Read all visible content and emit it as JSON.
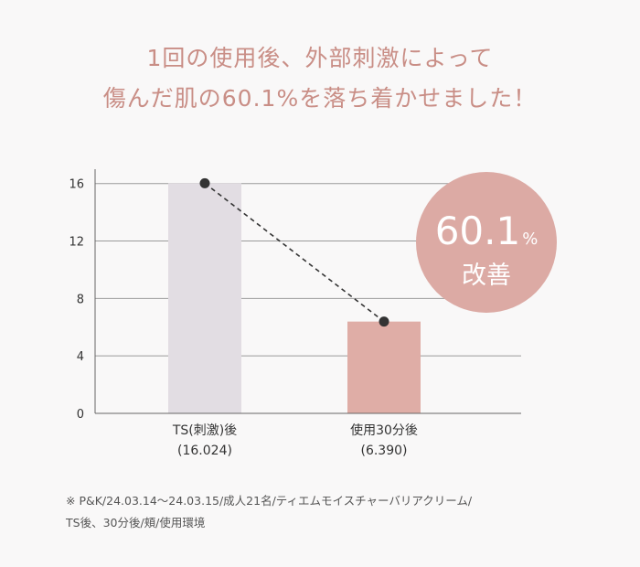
{
  "headline": {
    "line1": "1回の使用後、外部刺激によって",
    "line2": "傷んだ肌の60.1%を落ち着かせました！"
  },
  "colors": {
    "headline": "#c98e86",
    "bar_before": "#e2dde3",
    "bar_after": "#dfada6",
    "badge": "#dcaaa4",
    "line": "#333333"
  },
  "badge": {
    "number": "60.1",
    "percent": "%",
    "label": "改善"
  },
  "chart_data": {
    "type": "bar",
    "categories": [
      "TS(刺激)後",
      "使用30分後"
    ],
    "value_labels": [
      "(16.024)",
      "(6.390)"
    ],
    "values": [
      16.024,
      6.39
    ],
    "ylim": [
      0,
      17
    ],
    "yticks": [
      0,
      4,
      8,
      12,
      16
    ],
    "grid": true,
    "connector_line": "dashed"
  },
  "footnote": {
    "line1": "※ P&K/24.03.14〜24.03.15/成人21名/ティエムモイスチャーバリアクリーム/",
    "line2": "TS後、30分後/頬/使用環境"
  }
}
